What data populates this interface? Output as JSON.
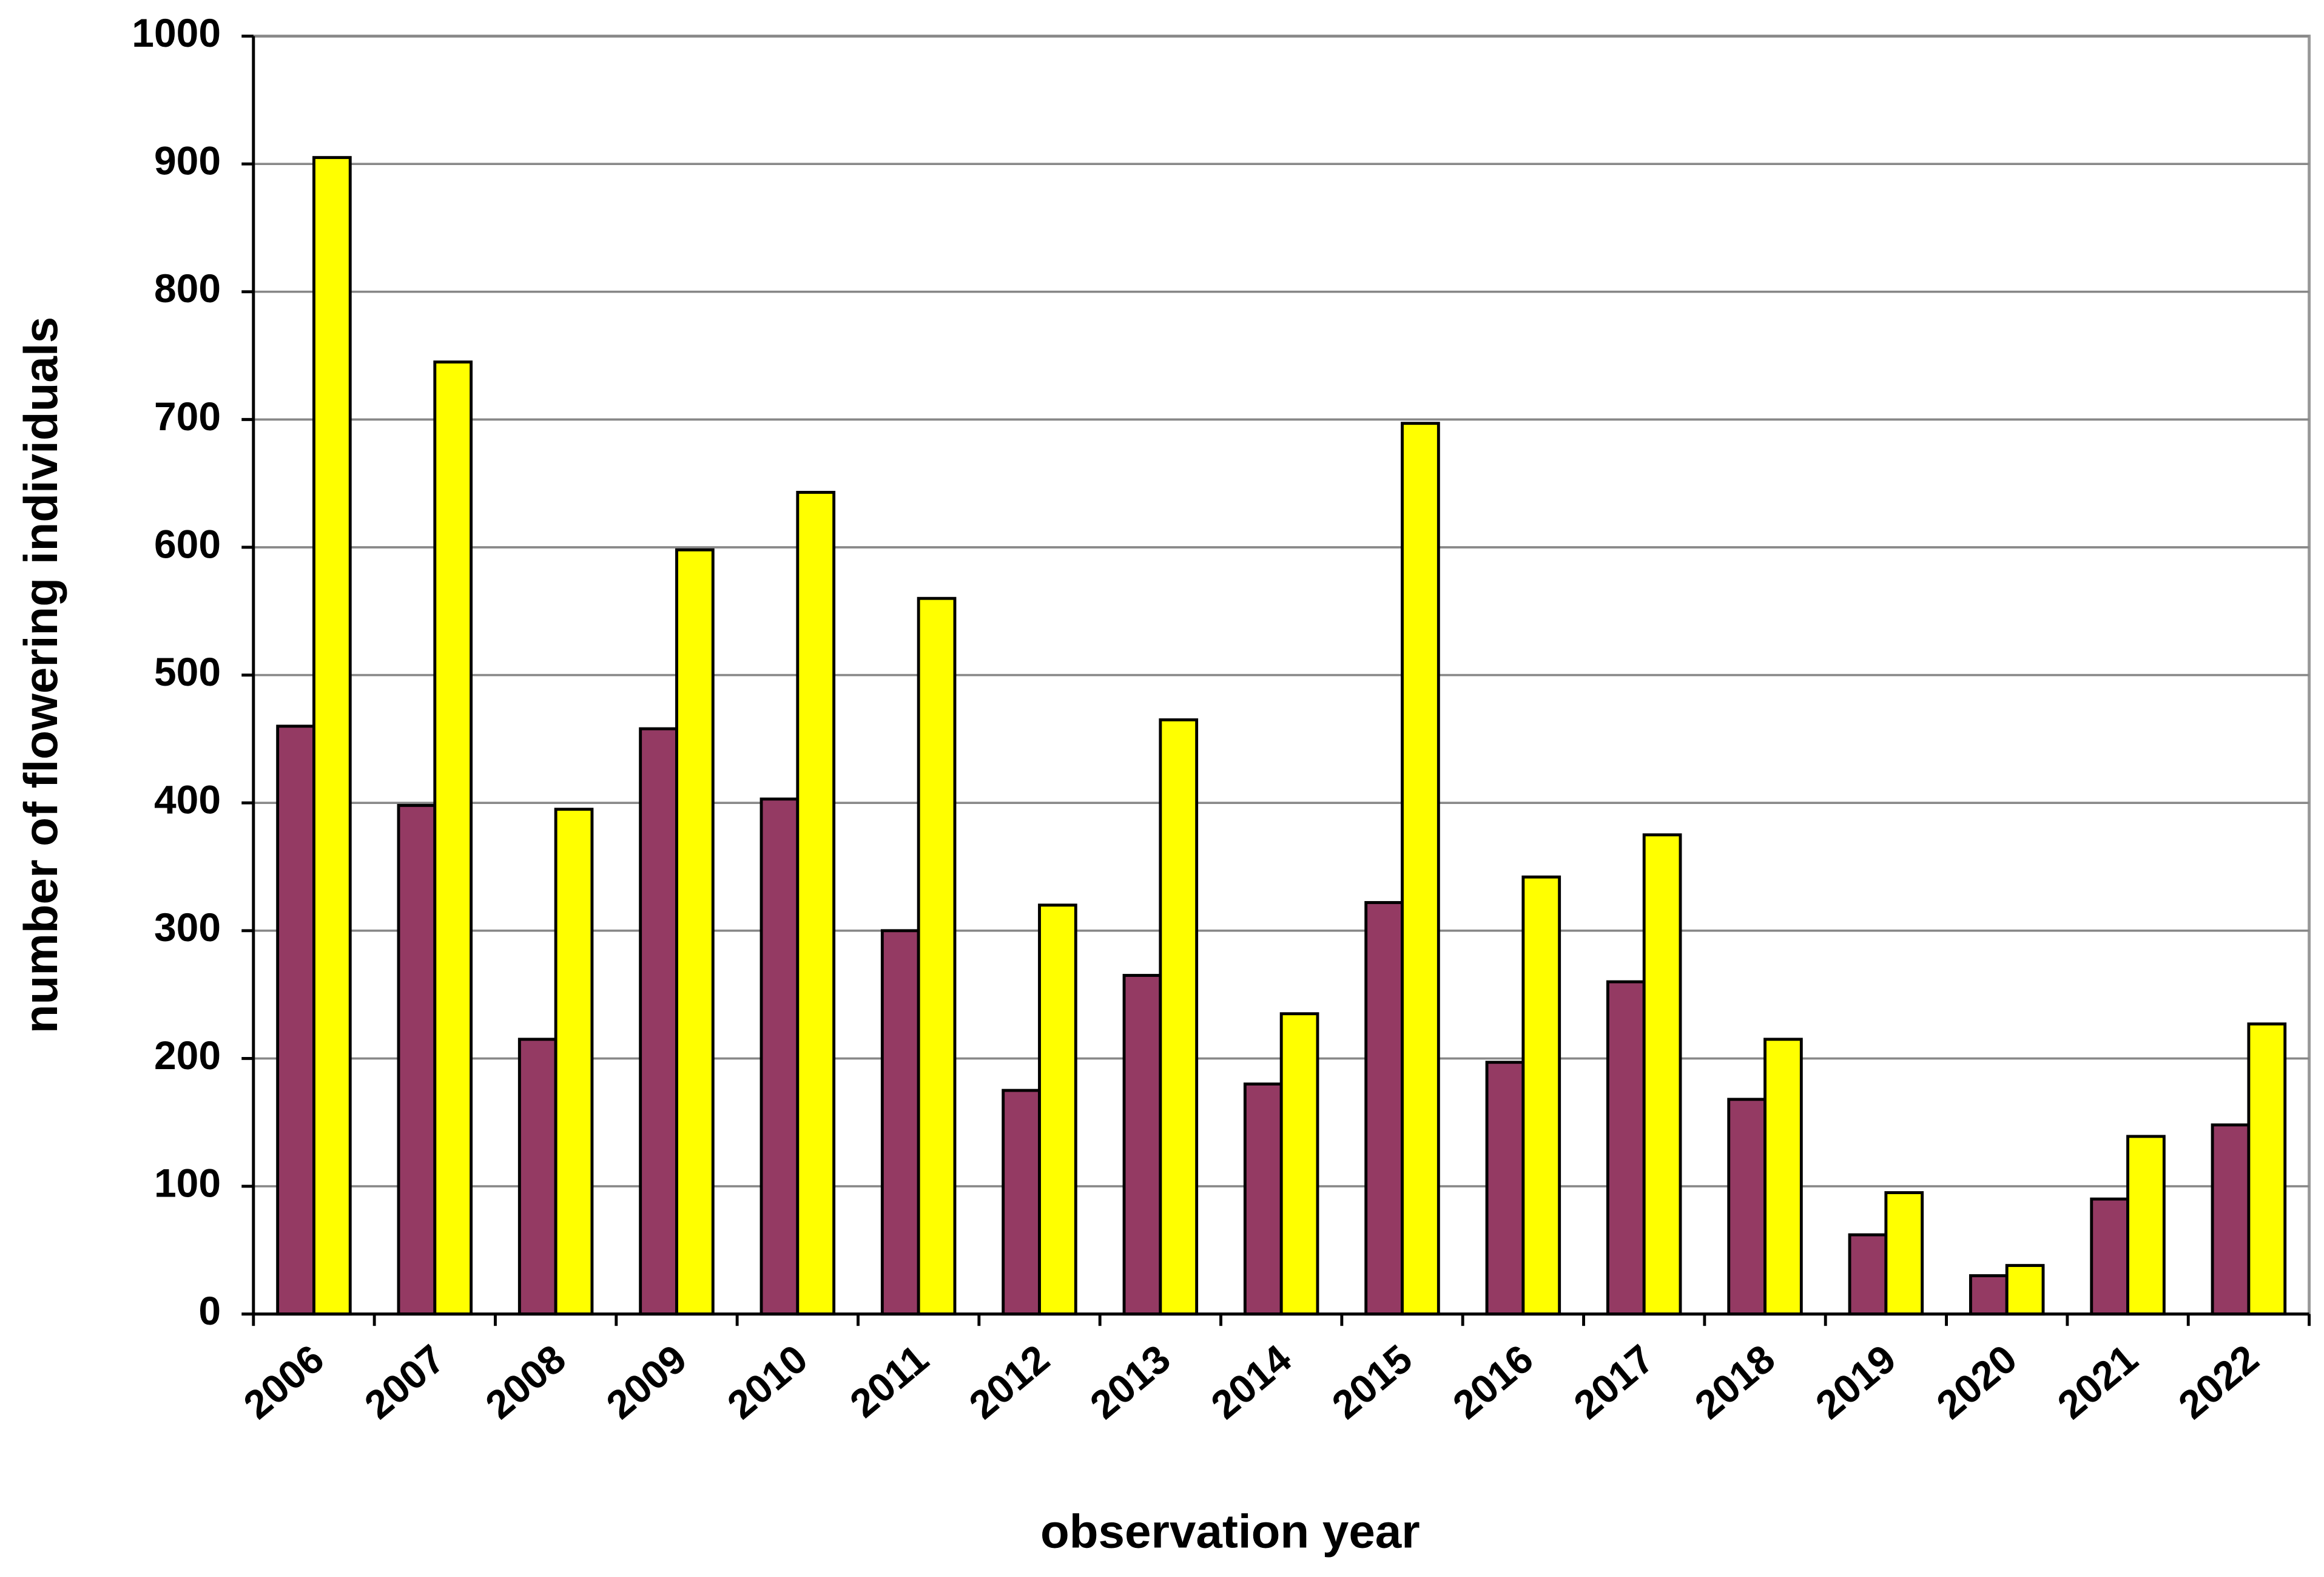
{
  "chart_data": {
    "type": "bar",
    "xlabel": "observation year",
    "ylabel": "number of flowering individuals",
    "categories": [
      "2006",
      "2007",
      "2008",
      "2009",
      "2010",
      "2011",
      "2012",
      "2013",
      "2014",
      "2015",
      "2016",
      "2017",
      "2018",
      "2019",
      "2020",
      "2021",
      "2022"
    ],
    "series": [
      {
        "color": "#943a63",
        "values": [
          460,
          398,
          215,
          458,
          403,
          300,
          175,
          265,
          180,
          322,
          197,
          260,
          168,
          62,
          30,
          90,
          148
        ]
      },
      {
        "color": "#ffff00",
        "values": [
          905,
          745,
          395,
          598,
          643,
          560,
          320,
          465,
          235,
          697,
          342,
          375,
          215,
          95,
          38,
          139,
          227
        ]
      }
    ],
    "ylim": [
      0,
      1000
    ],
    "yticks": [
      0,
      100,
      200,
      300,
      400,
      500,
      600,
      700,
      800,
      900,
      1000
    ],
    "grid": true
  }
}
